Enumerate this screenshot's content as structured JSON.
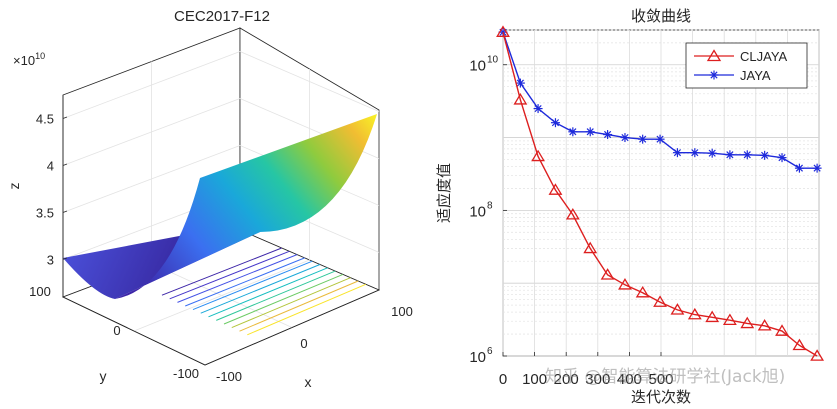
{
  "chart_data": [
    {
      "type": "surface3d",
      "title": "CEC2017-F12",
      "xlabel": "x",
      "ylabel": "y",
      "zlabel": "z",
      "z_exponent": "×10",
      "z_exponent_power": "10",
      "x_range": [
        -100,
        100
      ],
      "y_range": [
        -100,
        100
      ],
      "z_range": [
        2.6,
        4.75
      ],
      "x_ticks": [
        "-100",
        "0",
        "100"
      ],
      "y_ticks": [
        "-100",
        "0",
        "100"
      ],
      "z_ticks": [
        "3",
        "3.5",
        "4",
        "4.5"
      ],
      "z_tick_values": [
        3,
        3.5,
        4,
        4.5
      ],
      "contour_levels": 12
    },
    {
      "type": "line",
      "title": "收敛曲线",
      "xlabel": "迭代次数",
      "ylabel": "适应度值",
      "yscale": "log",
      "xlim": [
        0,
        1000
      ],
      "ylim": [
        1000000,
        30000000000
      ],
      "x_ticks": [
        "0",
        "100",
        "200",
        "300",
        "400",
        "500"
      ],
      "x_tick_values": [
        0,
        100,
        200,
        300,
        400,
        500
      ],
      "y_ticks": [
        "10",
        "10",
        "10"
      ],
      "y_tick_powers": [
        "6",
        "8",
        "10"
      ],
      "y_tick_values": [
        1000000,
        100000000,
        10000000000
      ],
      "legend_position": "top-right",
      "series": [
        {
          "name": "CLJAYA",
          "color": "#dd1f1f",
          "marker": "triangle",
          "x": [
            0,
            55,
            111,
            166,
            221,
            276,
            331,
            386,
            442,
            497,
            552,
            607,
            662,
            718,
            773,
            828,
            883,
            938,
            994
          ],
          "values": [
            28000000000,
            3300000000,
            550000000,
            190000000,
            87000000,
            30000000,
            13000000,
            9500000,
            7400000,
            5500000,
            4300000,
            3700000,
            3400000,
            3100000,
            2800000,
            2600000,
            2200000,
            1400000,
            1000000
          ]
        },
        {
          "name": "JAYA",
          "color": "#1e2adb",
          "marker": "star",
          "x": [
            0,
            55,
            111,
            166,
            221,
            276,
            331,
            386,
            442,
            497,
            552,
            607,
            662,
            718,
            773,
            828,
            883,
            938,
            994
          ],
          "values": [
            28000000000,
            5600000000,
            2500000000,
            1600000000,
            1200000000,
            1200000000,
            1100000000,
            1000000000,
            950000000,
            950000000,
            620000000,
            620000000,
            610000000,
            580000000,
            580000000,
            570000000,
            530000000,
            380000000,
            380000000
          ]
        }
      ]
    }
  ],
  "watermark": "知乎 @智能算法研学社(Jack旭)"
}
